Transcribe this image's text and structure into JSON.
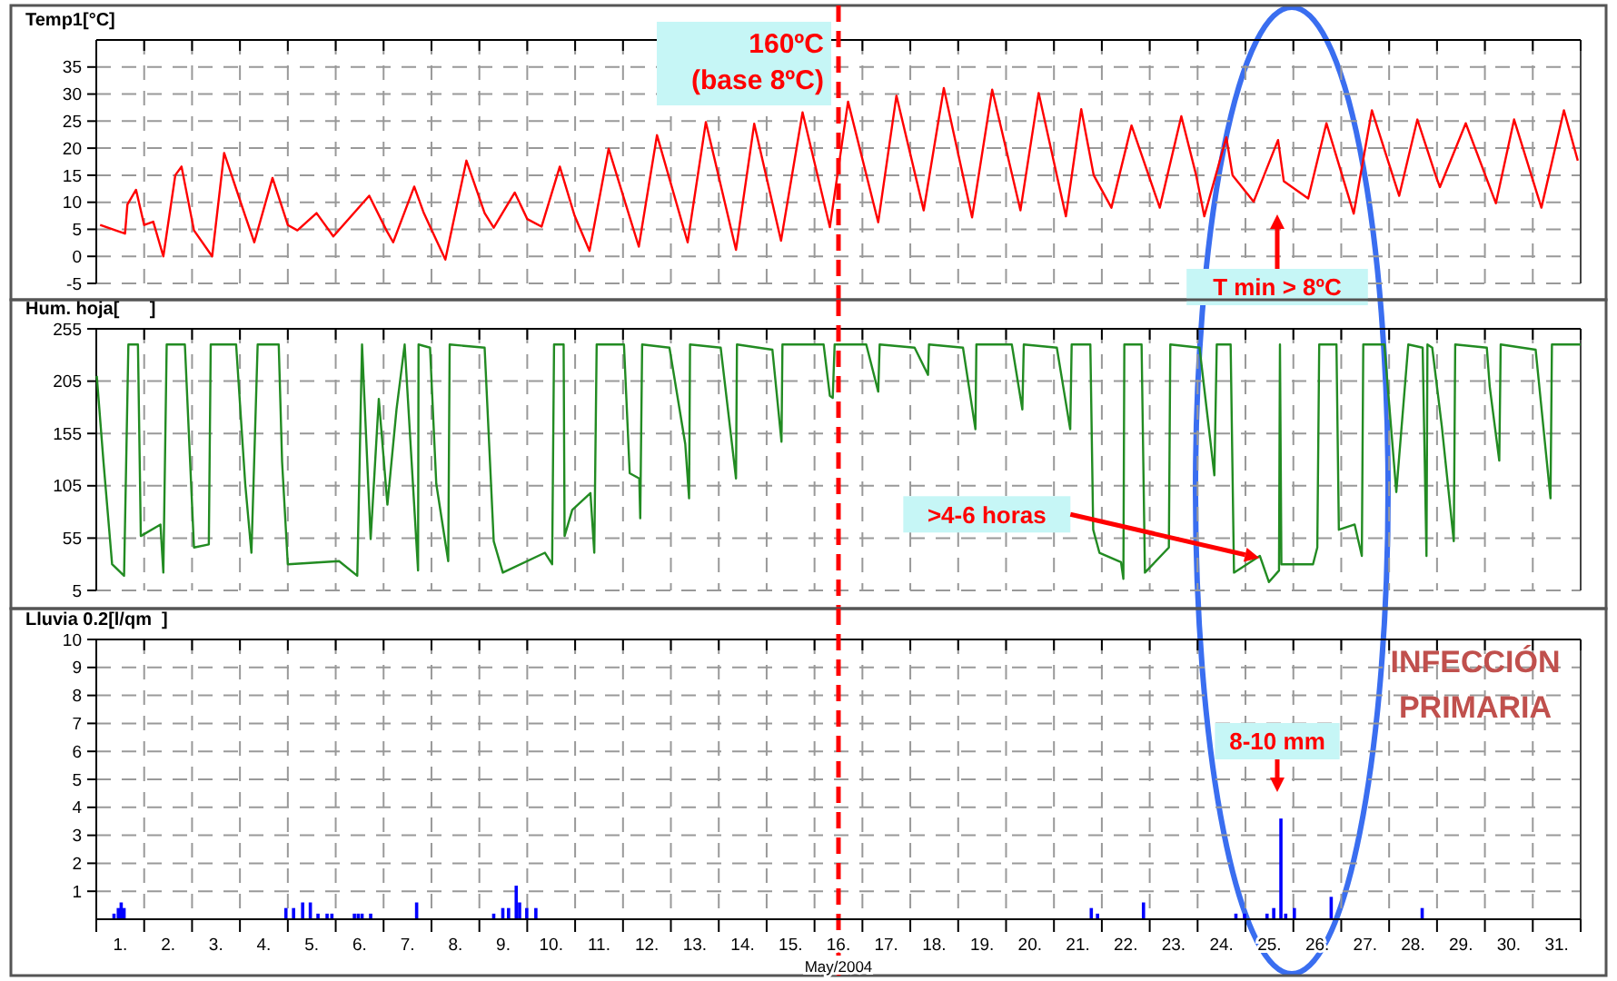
{
  "chart_data": [
    {
      "type": "line",
      "ylabel": "Temp1[°C]",
      "xlim": [
        1,
        32
      ],
      "ylim": [
        -5,
        40
      ],
      "yticks": [
        -5,
        0,
        5,
        10,
        15,
        20,
        25,
        30,
        35
      ],
      "tick_labels": "y",
      "grid": true,
      "xticks": [
        {
          "value": 1,
          "label": null
        },
        {
          "value": 2,
          "label": null
        },
        {
          "value": 3,
          "label": null
        },
        {
          "value": 4,
          "label": null
        },
        {
          "value": 5,
          "label": null
        },
        {
          "value": 6,
          "label": null
        },
        {
          "value": 7,
          "label": null
        },
        {
          "value": 8,
          "label": null
        },
        {
          "value": 9,
          "label": null
        },
        {
          "value": 10,
          "label": null
        },
        {
          "value": 11,
          "label": null
        },
        {
          "value": 12,
          "label": null
        },
        {
          "value": 13,
          "label": null
        },
        {
          "value": 14,
          "label": null
        },
        {
          "value": 15,
          "label": null
        },
        {
          "value": 16,
          "label": null
        },
        {
          "value": 17,
          "label": null
        },
        {
          "value": 18,
          "label": null
        },
        {
          "value": 19,
          "label": null
        },
        {
          "value": 20,
          "label": null
        },
        {
          "value": 21,
          "label": null
        },
        {
          "value": 22,
          "label": null
        },
        {
          "value": 23,
          "label": null
        },
        {
          "value": 24,
          "label": null
        },
        {
          "value": 25,
          "label": null
        },
        {
          "value": 26,
          "label": null
        },
        {
          "value": 27,
          "label": null
        },
        {
          "value": 28,
          "label": null
        },
        {
          "value": 29,
          "label": null
        },
        {
          "value": 30,
          "label": null
        },
        {
          "value": 31,
          "label": null
        },
        {
          "value": 32,
          "label": null
        }
      ],
      "ref_lines": [
        {
          "axis": "x",
          "value": 16.5,
          "label": "160ºC (base 8ºC)",
          "color": "#ff0000",
          "line_style": "dashed"
        }
      ],
      "annotations": [
        "T min > 8ºC"
      ],
      "series": [
        {
          "color": "#ff0000",
          "x": [
            1.08,
            1.6,
            1.65,
            1.83,
            2.0,
            2.19,
            2.4,
            2.65,
            2.78,
            3.04,
            3.42,
            3.67,
            4.11,
            4.3,
            4.68,
            5.0,
            5.2,
            5.6,
            5.95,
            6.7,
            7.06,
            7.2,
            7.64,
            7.84,
            8.29,
            8.73,
            9.11,
            9.3,
            9.74,
            10.0,
            10.3,
            10.68,
            10.99,
            11.3,
            11.7,
            12.33,
            12.71,
            13.35,
            13.73,
            14.36,
            14.74,
            15.3,
            15.75,
            16.32,
            16.7,
            17.33,
            17.71,
            18.28,
            18.7,
            19.29,
            19.71,
            20.3,
            20.68,
            21.25,
            21.57,
            21.83,
            22.2,
            22.62,
            23.21,
            23.66,
            23.97,
            24.14,
            24.6,
            24.73,
            25.17,
            25.68,
            25.8,
            26.31,
            26.69,
            27.26,
            27.64,
            28.21,
            28.59,
            28.97,
            29.06,
            29.6,
            30.23,
            30.61,
            31.18,
            31.65,
            31.94
          ],
          "values": [
            5.8,
            4.2,
            9.6,
            12.3,
            5.8,
            6.4,
            0,
            15,
            16.6,
            4.8,
            0,
            19.1,
            7.5,
            2.6,
            14.5,
            5.8,
            4.8,
            8,
            3.7,
            11.2,
            4.8,
            2.6,
            12.9,
            8,
            -0.6,
            17.7,
            8,
            5.3,
            11.8,
            6.9,
            5.5,
            16.6,
            7.5,
            1,
            19.9,
            1.8,
            22.4,
            2.6,
            24.8,
            1.2,
            24.5,
            2.9,
            26.6,
            5.4,
            28.6,
            6.3,
            29.7,
            8.5,
            31.1,
            7.2,
            30.8,
            8.5,
            30.2,
            7.4,
            27.2,
            15,
            9,
            24.2,
            9,
            25.9,
            15,
            7.4,
            22,
            15,
            10.1,
            21.5,
            13.9,
            10.7,
            24.6,
            7.9,
            27,
            11.2,
            25.3,
            15,
            12.8,
            24.6,
            9.8,
            25.3,
            9,
            27,
            17.7
          ]
        }
      ]
    },
    {
      "type": "line",
      "ylabel": "Hum. hoja[      ]",
      "xlim": [
        1,
        32
      ],
      "ylim": [
        5,
        255
      ],
      "yticks": [
        5,
        55,
        105,
        155,
        205,
        255
      ],
      "tick_labels": "y",
      "grid": true,
      "xticks": [
        {
          "value": 1,
          "label": null
        },
        {
          "value": 2,
          "label": null
        },
        {
          "value": 3,
          "label": null
        },
        {
          "value": 4,
          "label": null
        },
        {
          "value": 5,
          "label": null
        },
        {
          "value": 6,
          "label": null
        },
        {
          "value": 7,
          "label": null
        },
        {
          "value": 8,
          "label": null
        },
        {
          "value": 9,
          "label": null
        },
        {
          "value": 10,
          "label": null
        },
        {
          "value": 11,
          "label": null
        },
        {
          "value": 12,
          "label": null
        },
        {
          "value": 13,
          "label": null
        },
        {
          "value": 14,
          "label": null
        },
        {
          "value": 15,
          "label": null
        },
        {
          "value": 16,
          "label": null
        },
        {
          "value": 17,
          "label": null
        },
        {
          "value": 18,
          "label": null
        },
        {
          "value": 19,
          "label": null
        },
        {
          "value": 20,
          "label": null
        },
        {
          "value": 21,
          "label": null
        },
        {
          "value": 22,
          "label": null
        },
        {
          "value": 23,
          "label": null
        },
        {
          "value": 24,
          "label": null
        },
        {
          "value": 25,
          "label": null
        },
        {
          "value": 26,
          "label": null
        },
        {
          "value": 27,
          "label": null
        },
        {
          "value": 28,
          "label": null
        },
        {
          "value": 29,
          "label": null
        },
        {
          "value": 30,
          "label": null
        },
        {
          "value": 31,
          "label": null
        },
        {
          "value": 32,
          "label": null
        }
      ],
      "ref_lines": [
        {
          "axis": "x",
          "value": 16.5,
          "color": "#ff0000",
          "line_style": "dashed"
        }
      ],
      "annotations": [
        {
          "text": ">4-6 horas",
          "x": 25.29,
          "y": 36
        }
      ],
      "series": [
        {
          "color": "#228b22",
          "x": [
            1.01,
            1.15,
            1.33,
            1.58,
            1.67,
            1.87,
            1.93,
            2.34,
            2.4,
            2.47,
            2.85,
            3.04,
            3.35,
            3.39,
            3.92,
            4.11,
            4.24,
            4.37,
            4.81,
            4.88,
            5.0,
            6.07,
            6.45,
            6.55,
            6.73,
            6.9,
            7.08,
            7.27,
            7.44,
            7.72,
            7.73,
            7.97,
            8.1,
            8.35,
            8.38,
            9.11,
            9.3,
            9.49,
            10.37,
            10.52,
            10.56,
            10.76,
            10.78,
            10.94,
            11.32,
            11.4,
            11.45,
            12.02,
            12.14,
            12.34,
            12.36,
            12.4,
            12.97,
            13.3,
            13.38,
            13.4,
            14.04,
            14.36,
            14.38,
            15.12,
            15.31,
            15.33,
            16.19,
            16.32,
            16.38,
            16.42,
            17.08,
            17.33,
            17.36,
            18.09,
            18.37,
            18.39,
            19.1,
            19.36,
            19.38,
            20.12,
            20.34,
            20.37,
            21.06,
            21.34,
            21.37,
            21.76,
            21.82,
            21.95,
            22.4,
            22.45,
            22.47,
            22.83,
            22.9,
            23.4,
            23.43,
            24.04,
            24.35,
            24.4,
            24.69,
            24.76,
            25.3,
            25.49,
            25.7,
            25.72,
            25.75,
            26.41,
            26.5,
            26.54,
            26.9,
            26.95,
            27.28,
            27.43,
            27.46,
            27.9,
            28.15,
            28.4,
            28.7,
            28.78,
            28.8,
            28.9,
            29.1,
            29.35,
            29.38,
            30.04,
            30.1,
            30.3,
            30.33,
            31.06,
            31.37,
            31.4,
            32.0
          ],
          "values": [
            210,
            128,
            30,
            19,
            240,
            240,
            57,
            68,
            22,
            240,
            240,
            46,
            49,
            240,
            240,
            107,
            41,
            240,
            240,
            128,
            30,
            33,
            19,
            240,
            54,
            188,
            87,
            178,
            240,
            24,
            240,
            237,
            107,
            33,
            240,
            237,
            52,
            22,
            41,
            30,
            240,
            240,
            57,
            82,
            98,
            41,
            240,
            240,
            117,
            112,
            74,
            240,
            237,
            145,
            93,
            240,
            237,
            112,
            240,
            235,
            147,
            240,
            240,
            191,
            189,
            240,
            240,
            195,
            240,
            237,
            211,
            240,
            237,
            159,
            240,
            240,
            178,
            240,
            237,
            159,
            240,
            240,
            63,
            41,
            32,
            16,
            240,
            240,
            22,
            46,
            240,
            237,
            115,
            240,
            240,
            22,
            38,
            13,
            24,
            240,
            30,
            30,
            46,
            240,
            240,
            63,
            68,
            38,
            240,
            240,
            99,
            240,
            237,
            38,
            240,
            237,
            162,
            52,
            240,
            237,
            200,
            129,
            240,
            235,
            93,
            240,
            240
          ]
        }
      ]
    },
    {
      "type": "bar",
      "ylabel": "Lluvia 0.2[l/qm  ]",
      "xlabel": "May/2004",
      "xlim": [
        1,
        32
      ],
      "ylim": [
        0,
        10
      ],
      "yticks": [
        1,
        2,
        3,
        4,
        5,
        6,
        7,
        8,
        9,
        10
      ],
      "grid": true,
      "xticks": [
        {
          "value": 1,
          "label": null
        },
        {
          "value": 1.5,
          "label": "1."
        },
        {
          "value": 2,
          "label": null
        },
        {
          "value": 2.5,
          "label": "2."
        },
        {
          "value": 3,
          "label": null
        },
        {
          "value": 3.5,
          "label": "3."
        },
        {
          "value": 4,
          "label": null
        },
        {
          "value": 4.5,
          "label": "4."
        },
        {
          "value": 5,
          "label": null
        },
        {
          "value": 5.5,
          "label": "5."
        },
        {
          "value": 6,
          "label": null
        },
        {
          "value": 6.5,
          "label": "6."
        },
        {
          "value": 7,
          "label": null
        },
        {
          "value": 7.5,
          "label": "7."
        },
        {
          "value": 8,
          "label": null
        },
        {
          "value": 8.5,
          "label": "8."
        },
        {
          "value": 9,
          "label": null
        },
        {
          "value": 9.5,
          "label": "9."
        },
        {
          "value": 10,
          "label": null
        },
        {
          "value": 10.5,
          "label": "10."
        },
        {
          "value": 11,
          "label": null
        },
        {
          "value": 11.5,
          "label": "11."
        },
        {
          "value": 12,
          "label": null
        },
        {
          "value": 12.5,
          "label": "12."
        },
        {
          "value": 13,
          "label": null
        },
        {
          "value": 13.5,
          "label": "13."
        },
        {
          "value": 14,
          "label": null
        },
        {
          "value": 14.5,
          "label": "14."
        },
        {
          "value": 15,
          "label": null
        },
        {
          "value": 15.5,
          "label": "15."
        },
        {
          "value": 16,
          "label": null
        },
        {
          "value": 16.5,
          "label": "16."
        },
        {
          "value": 17,
          "label": null
        },
        {
          "value": 17.5,
          "label": "17."
        },
        {
          "value": 18,
          "label": null
        },
        {
          "value": 18.5,
          "label": "18."
        },
        {
          "value": 19,
          "label": null
        },
        {
          "value": 19.5,
          "label": "19."
        },
        {
          "value": 20,
          "label": null
        },
        {
          "value": 20.5,
          "label": "20."
        },
        {
          "value": 21,
          "label": null
        },
        {
          "value": 21.5,
          "label": "21."
        },
        {
          "value": 22,
          "label": null
        },
        {
          "value": 22.5,
          "label": "22."
        },
        {
          "value": 23,
          "label": null
        },
        {
          "value": 23.5,
          "label": "23."
        },
        {
          "value": 24,
          "label": null
        },
        {
          "value": 24.5,
          "label": "24."
        },
        {
          "value": 25,
          "label": null
        },
        {
          "value": 25.5,
          "label": "25."
        },
        {
          "value": 26,
          "label": null
        },
        {
          "value": 26.5,
          "label": "26."
        },
        {
          "value": 27,
          "label": null
        },
        {
          "value": 27.5,
          "label": "27."
        },
        {
          "value": 28,
          "label": null
        },
        {
          "value": 28.5,
          "label": "28."
        },
        {
          "value": 29,
          "label": null
        },
        {
          "value": 29.5,
          "label": "29."
        },
        {
          "value": 30,
          "label": null
        },
        {
          "value": 30.5,
          "label": "30."
        },
        {
          "value": 31,
          "label": null
        },
        {
          "value": 31.5,
          "label": "31."
        },
        {
          "value": 32,
          "label": null
        }
      ],
      "ref_lines": [
        {
          "axis": "x",
          "value": 16.5,
          "color": "#ff0000",
          "line_style": "dashed"
        }
      ],
      "annotations": [
        "8-10 mm",
        "INFECCIÓN PRIMARIA"
      ],
      "series": [
        {
          "color": "#0000ff",
          "x": [
            1.37,
            1.46,
            1.52,
            1.58,
            4.96,
            5.12,
            5.31,
            5.47,
            5.63,
            5.82,
            5.92,
            6.39,
            6.47,
            6.55,
            6.73,
            7.69,
            9.3,
            9.49,
            9.61,
            9.77,
            9.84,
            9.99,
            10.18,
            21.78,
            21.91,
            22.87,
            24.8,
            24.98,
            25.45,
            25.59,
            25.74,
            25.84,
            26.02,
            26.79,
            28.69
          ],
          "values": [
            0.2,
            0.4,
            0.6,
            0.4,
            0.4,
            0.4,
            0.6,
            0.6,
            0.2,
            0.2,
            0.2,
            0.2,
            0.2,
            0.2,
            0.2,
            0.6,
            0.2,
            0.4,
            0.4,
            1.2,
            0.6,
            0.4,
            0.4,
            0.4,
            0.2,
            0.6,
            0.2,
            0.2,
            0.2,
            0.4,
            3.6,
            0.2,
            0.4,
            0.8,
            0.4
          ]
        }
      ]
    }
  ]
}
